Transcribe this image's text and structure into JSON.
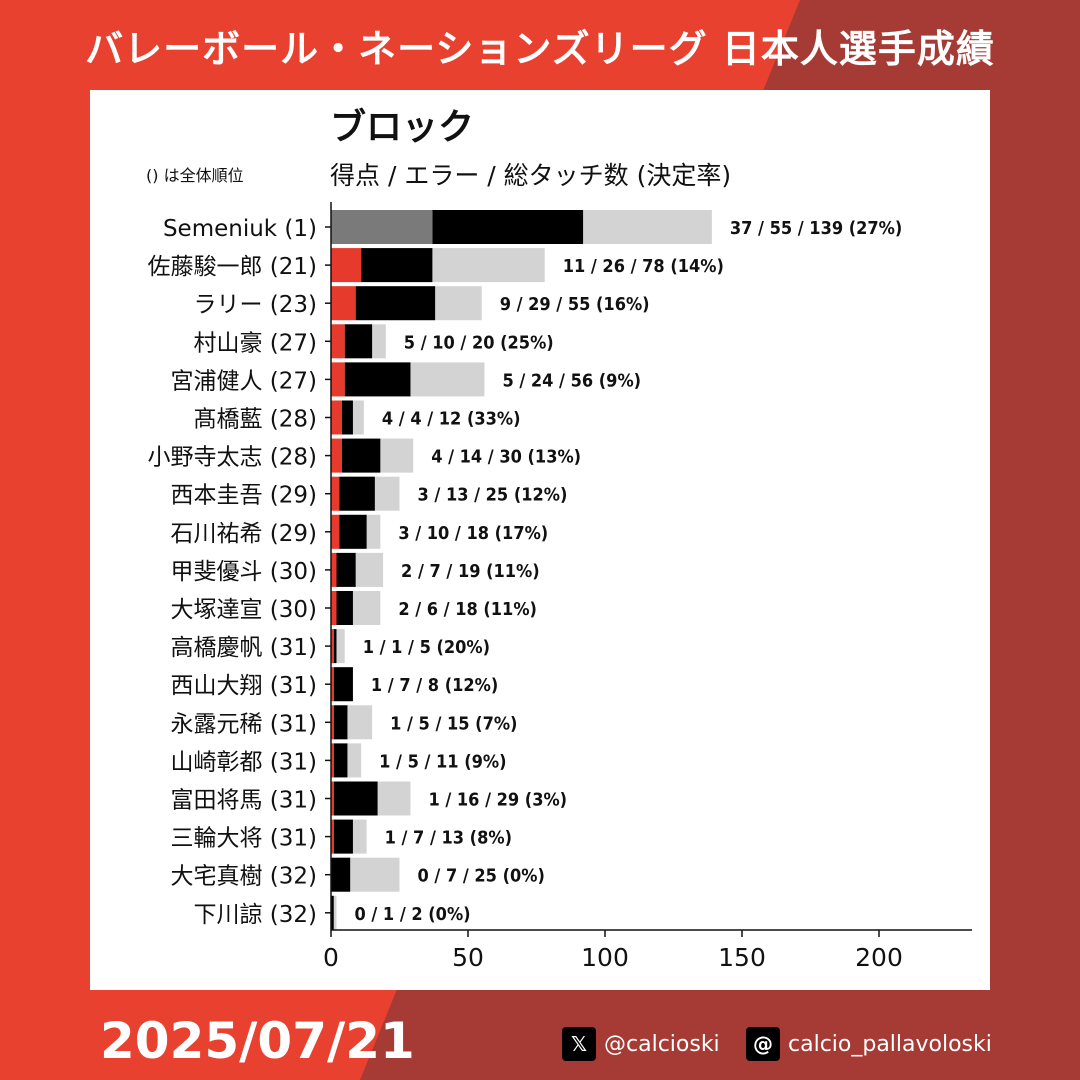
{
  "header": {
    "title": "バレーボール・ネーションズリーグ 日本人選手成績"
  },
  "colors": {
    "bg_red": "#e8412f",
    "bg_dark": "#a63a34",
    "points": "#e53a2c",
    "points_top": "#7a7a7a",
    "errors": "#000000",
    "total": "#d3d3d3"
  },
  "chart_data": {
    "type": "bar",
    "orientation": "horizontal",
    "stacked": "overlay",
    "title": "ブロック",
    "subtitle": "得点 / エラー / 総タッチ数 (決定率)",
    "note": "() は全体順位",
    "xlim": [
      0,
      232
    ],
    "xticks": [
      0,
      50,
      100,
      150,
      200
    ],
    "grid": false,
    "series": [
      {
        "values": [
          37,
          11,
          9,
          5,
          5,
          4,
          4,
          3,
          3,
          2,
          2,
          1,
          1,
          1,
          1,
          1,
          1,
          0,
          0
        ]
      },
      {
        "values": [
          55,
          26,
          29,
          10,
          24,
          4,
          14,
          13,
          10,
          7,
          6,
          1,
          7,
          5,
          5,
          16,
          7,
          7,
          1
        ]
      },
      {
        "values": [
          139,
          78,
          55,
          20,
          56,
          12,
          30,
          25,
          18,
          19,
          18,
          5,
          8,
          15,
          11,
          29,
          13,
          25,
          2
        ]
      }
    ],
    "categories": [
      "Semeniuk (1)",
      "佐藤駿一郎 (21)",
      "ラリー (23)",
      "村山豪 (27)",
      "宮浦健人 (27)",
      "髙橋藍 (28)",
      "小野寺太志 (28)",
      "西本圭吾 (29)",
      "石川祐希 (29)",
      "甲斐優斗 (30)",
      "大塚達宣 (30)",
      "高橋慶帆 (31)",
      "西山大翔 (31)",
      "永露元稀 (31)",
      "山崎彰都 (31)",
      "富田将馬 (31)",
      "三輪大将 (31)",
      "大宅真樹 (32)",
      "下川諒 (32)"
    ],
    "data_labels": [
      "37 / 55 / 139 (27%)",
      "11 / 26 / 78 (14%)",
      "9 / 29 / 55 (16%)",
      "5 / 10 / 20 (25%)",
      "5 / 24 / 56 (9%)",
      "4 / 4 / 12 (33%)",
      "4 / 14 / 30 (13%)",
      "3 / 13 / 25 (12%)",
      "3 / 10 / 18 (17%)",
      "2 / 7 / 19 (11%)",
      "2 / 6 / 18 (11%)",
      "1 / 1 / 5 (20%)",
      "1 / 7 / 8 (12%)",
      "1 / 5 / 15 (7%)",
      "1 / 5 / 11 (9%)",
      "1 / 16 / 29 (3%)",
      "1 / 7 / 13 (8%)",
      "0 / 7 / 25 (0%)",
      "0 / 1 / 2 (0%)"
    ]
  },
  "footer": {
    "date": "2025/07/21",
    "x_handle": "@calcioski",
    "x_icon": "x-logo-icon",
    "threads_handle": "calcio_pallavoloski",
    "threads_icon": "threads-logo-icon"
  }
}
